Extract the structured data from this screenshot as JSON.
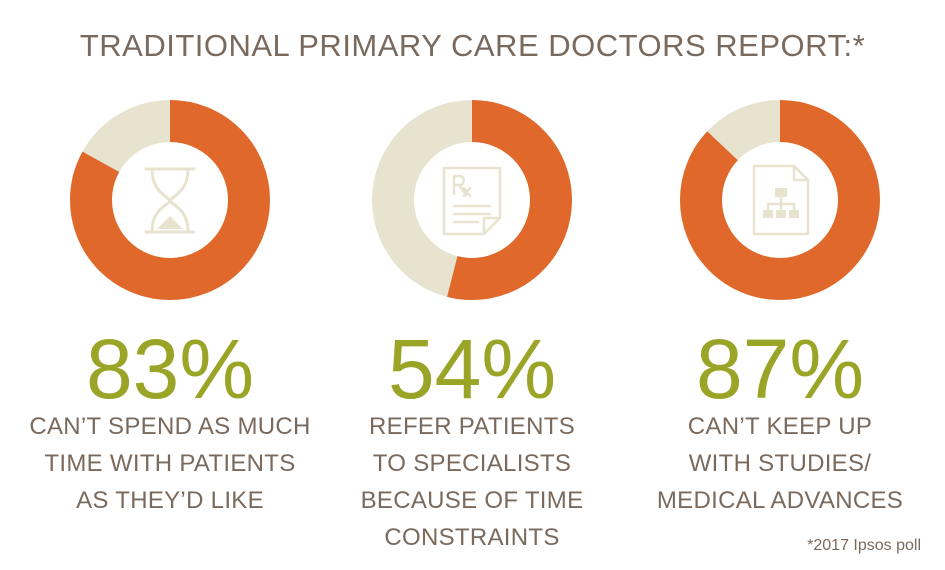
{
  "title": "TRADITIONAL PRIMARY CARE DOCTORS REPORT:*",
  "footnote": "*2017 Ipsos poll",
  "colors": {
    "accent": "#e0682a",
    "track": "#e8e3cf",
    "percent_text": "#9aa527",
    "body_text": "#7a6a5e",
    "icon": "#e8e3cf"
  },
  "stats": [
    {
      "percent_label": "83%",
      "icon": "hourglass-icon",
      "description_lines": [
        "CAN’T SPEND AS MUCH",
        "TIME WITH PATIENTS",
        "AS THEY’D LIKE"
      ]
    },
    {
      "percent_label": "54%",
      "icon": "prescription-icon",
      "description_lines": [
        "REFER PATIENTS",
        "TO SPECIALISTS",
        "BECAUSE OF TIME",
        "CONSTRAINTS"
      ]
    },
    {
      "percent_label": "87%",
      "icon": "document-chart-icon",
      "description_lines": [
        "CAN’T KEEP UP",
        "WITH STUDIES/",
        "MEDICAL ADVANCES"
      ]
    }
  ],
  "chart_data": [
    {
      "type": "pie",
      "style": "donut",
      "values": [
        83,
        17
      ]
    },
    {
      "type": "pie",
      "style": "donut",
      "values": [
        54,
        46
      ]
    },
    {
      "type": "pie",
      "style": "donut",
      "values": [
        87,
        13
      ]
    }
  ]
}
